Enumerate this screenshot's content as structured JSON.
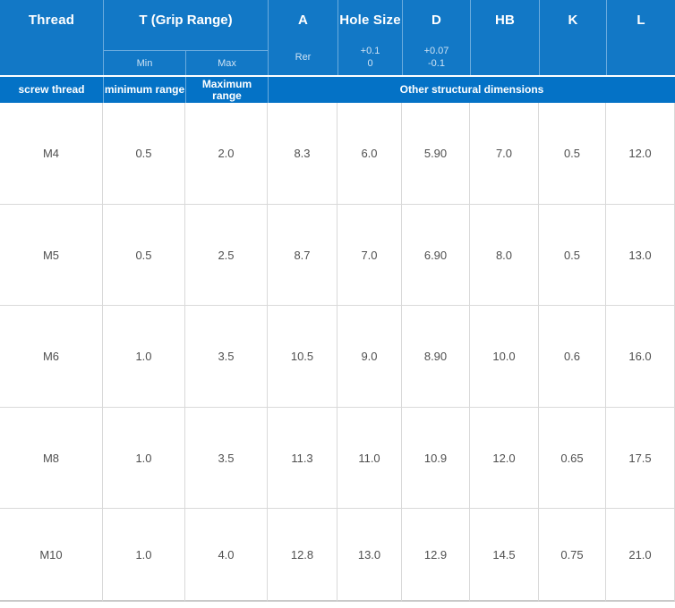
{
  "colors": {
    "header_bg": "#1278c6",
    "subheader_bg": "#0472c6",
    "divider": "#6aabde",
    "separator": "#ffffff",
    "header_text": "#ffffff",
    "header_subtext": "#cfe3f4",
    "data_border": "#d9d9d9",
    "data_border_bottom": "#c9c9c9",
    "data_text": "#4f4f4f"
  },
  "header": {
    "thread": "Thread",
    "grip_range": "T (Grip Range)",
    "min": "Min",
    "max": "Max",
    "a": "A",
    "a_sub": "Rer",
    "hole_size": "Hole Size",
    "hole_tol_upper": "+0.1",
    "hole_tol_lower": "0",
    "d": "D",
    "d_tol_upper": "+0.07",
    "d_tol_lower": "-0.1",
    "hb": "HB",
    "k": "K",
    "l": "L"
  },
  "subheader": {
    "screw_thread": "screw thread",
    "minimum_range": "minimum range",
    "maximum_range": "Maximum range",
    "other": "Other structural dimensions"
  },
  "rows": [
    {
      "thread": "M4",
      "t_min": "0.5",
      "t_max": "2.0",
      "a": "8.3",
      "hole": "6.0",
      "d": "5.90",
      "hb": "7.0",
      "k": "0.5",
      "l": "12.0"
    },
    {
      "thread": "M5",
      "t_min": "0.5",
      "t_max": "2.5",
      "a": "8.7",
      "hole": "7.0",
      "d": "6.90",
      "hb": "8.0",
      "k": "0.5",
      "l": "13.0"
    },
    {
      "thread": "M6",
      "t_min": "1.0",
      "t_max": "3.5",
      "a": "10.5",
      "hole": "9.0",
      "d": "8.90",
      "hb": "10.0",
      "k": "0.6",
      "l": "16.0"
    },
    {
      "thread": "M8",
      "t_min": "1.0",
      "t_max": "3.5",
      "a": "11.3",
      "hole": "11.0",
      "d": "10.9",
      "hb": "12.0",
      "k": "0.65",
      "l": "17.5"
    },
    {
      "thread": "M10",
      "t_min": "1.0",
      "t_max": "4.0",
      "a": "12.8",
      "hole": "13.0",
      "d": "12.9",
      "hb": "14.5",
      "k": "0.75",
      "l": "21.0"
    }
  ]
}
